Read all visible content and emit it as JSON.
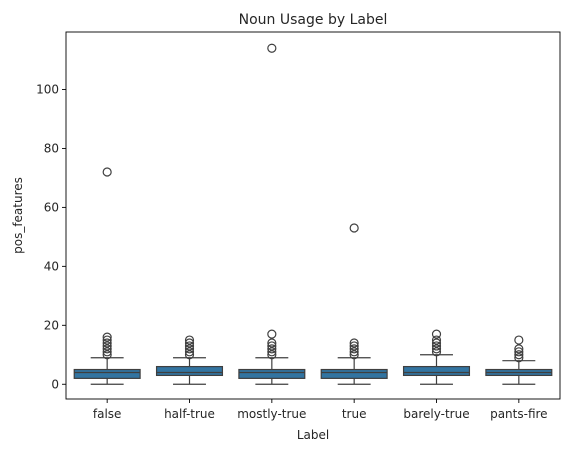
{
  "chart_data": {
    "type": "box",
    "title": "Noun Usage by Label",
    "xlabel": "Label",
    "ylabel": "pos_features",
    "ylim": [
      -5,
      119.5
    ],
    "yticks": [
      0,
      20,
      40,
      60,
      80,
      100
    ],
    "box_color": "#3274a1",
    "edge_color": "#3f3f3f",
    "categories": [
      "false",
      "half-true",
      "mostly-true",
      "true",
      "barely-true",
      "pants-fire"
    ],
    "boxes": [
      {
        "label": "false",
        "whisker_low": 0,
        "q1": 2,
        "median": 4,
        "q3": 5,
        "whisker_high": 9,
        "outliers": [
          10,
          11,
          12,
          13,
          14,
          15,
          16,
          72
        ]
      },
      {
        "label": "half-true",
        "whisker_low": 0,
        "q1": 3,
        "median": 4,
        "q3": 6,
        "whisker_high": 9,
        "outliers": [
          10,
          11,
          12,
          13,
          14,
          15
        ]
      },
      {
        "label": "mostly-true",
        "whisker_low": 0,
        "q1": 2,
        "median": 4,
        "q3": 5,
        "whisker_high": 9,
        "outliers": [
          10,
          11,
          12,
          13,
          14,
          17,
          114
        ]
      },
      {
        "label": "true",
        "whisker_low": 0,
        "q1": 2,
        "median": 4,
        "q3": 5,
        "whisker_high": 9,
        "outliers": [
          10,
          11,
          12,
          13,
          14,
          53
        ]
      },
      {
        "label": "barely-true",
        "whisker_low": 0,
        "q1": 3,
        "median": 4,
        "q3": 6,
        "whisker_high": 10,
        "outliers": [
          11,
          12,
          13,
          14,
          15,
          17
        ]
      },
      {
        "label": "pants-fire",
        "whisker_low": 0,
        "q1": 3,
        "median": 4,
        "q3": 5,
        "whisker_high": 8,
        "outliers": [
          9,
          10,
          11,
          12,
          15
        ]
      }
    ]
  }
}
